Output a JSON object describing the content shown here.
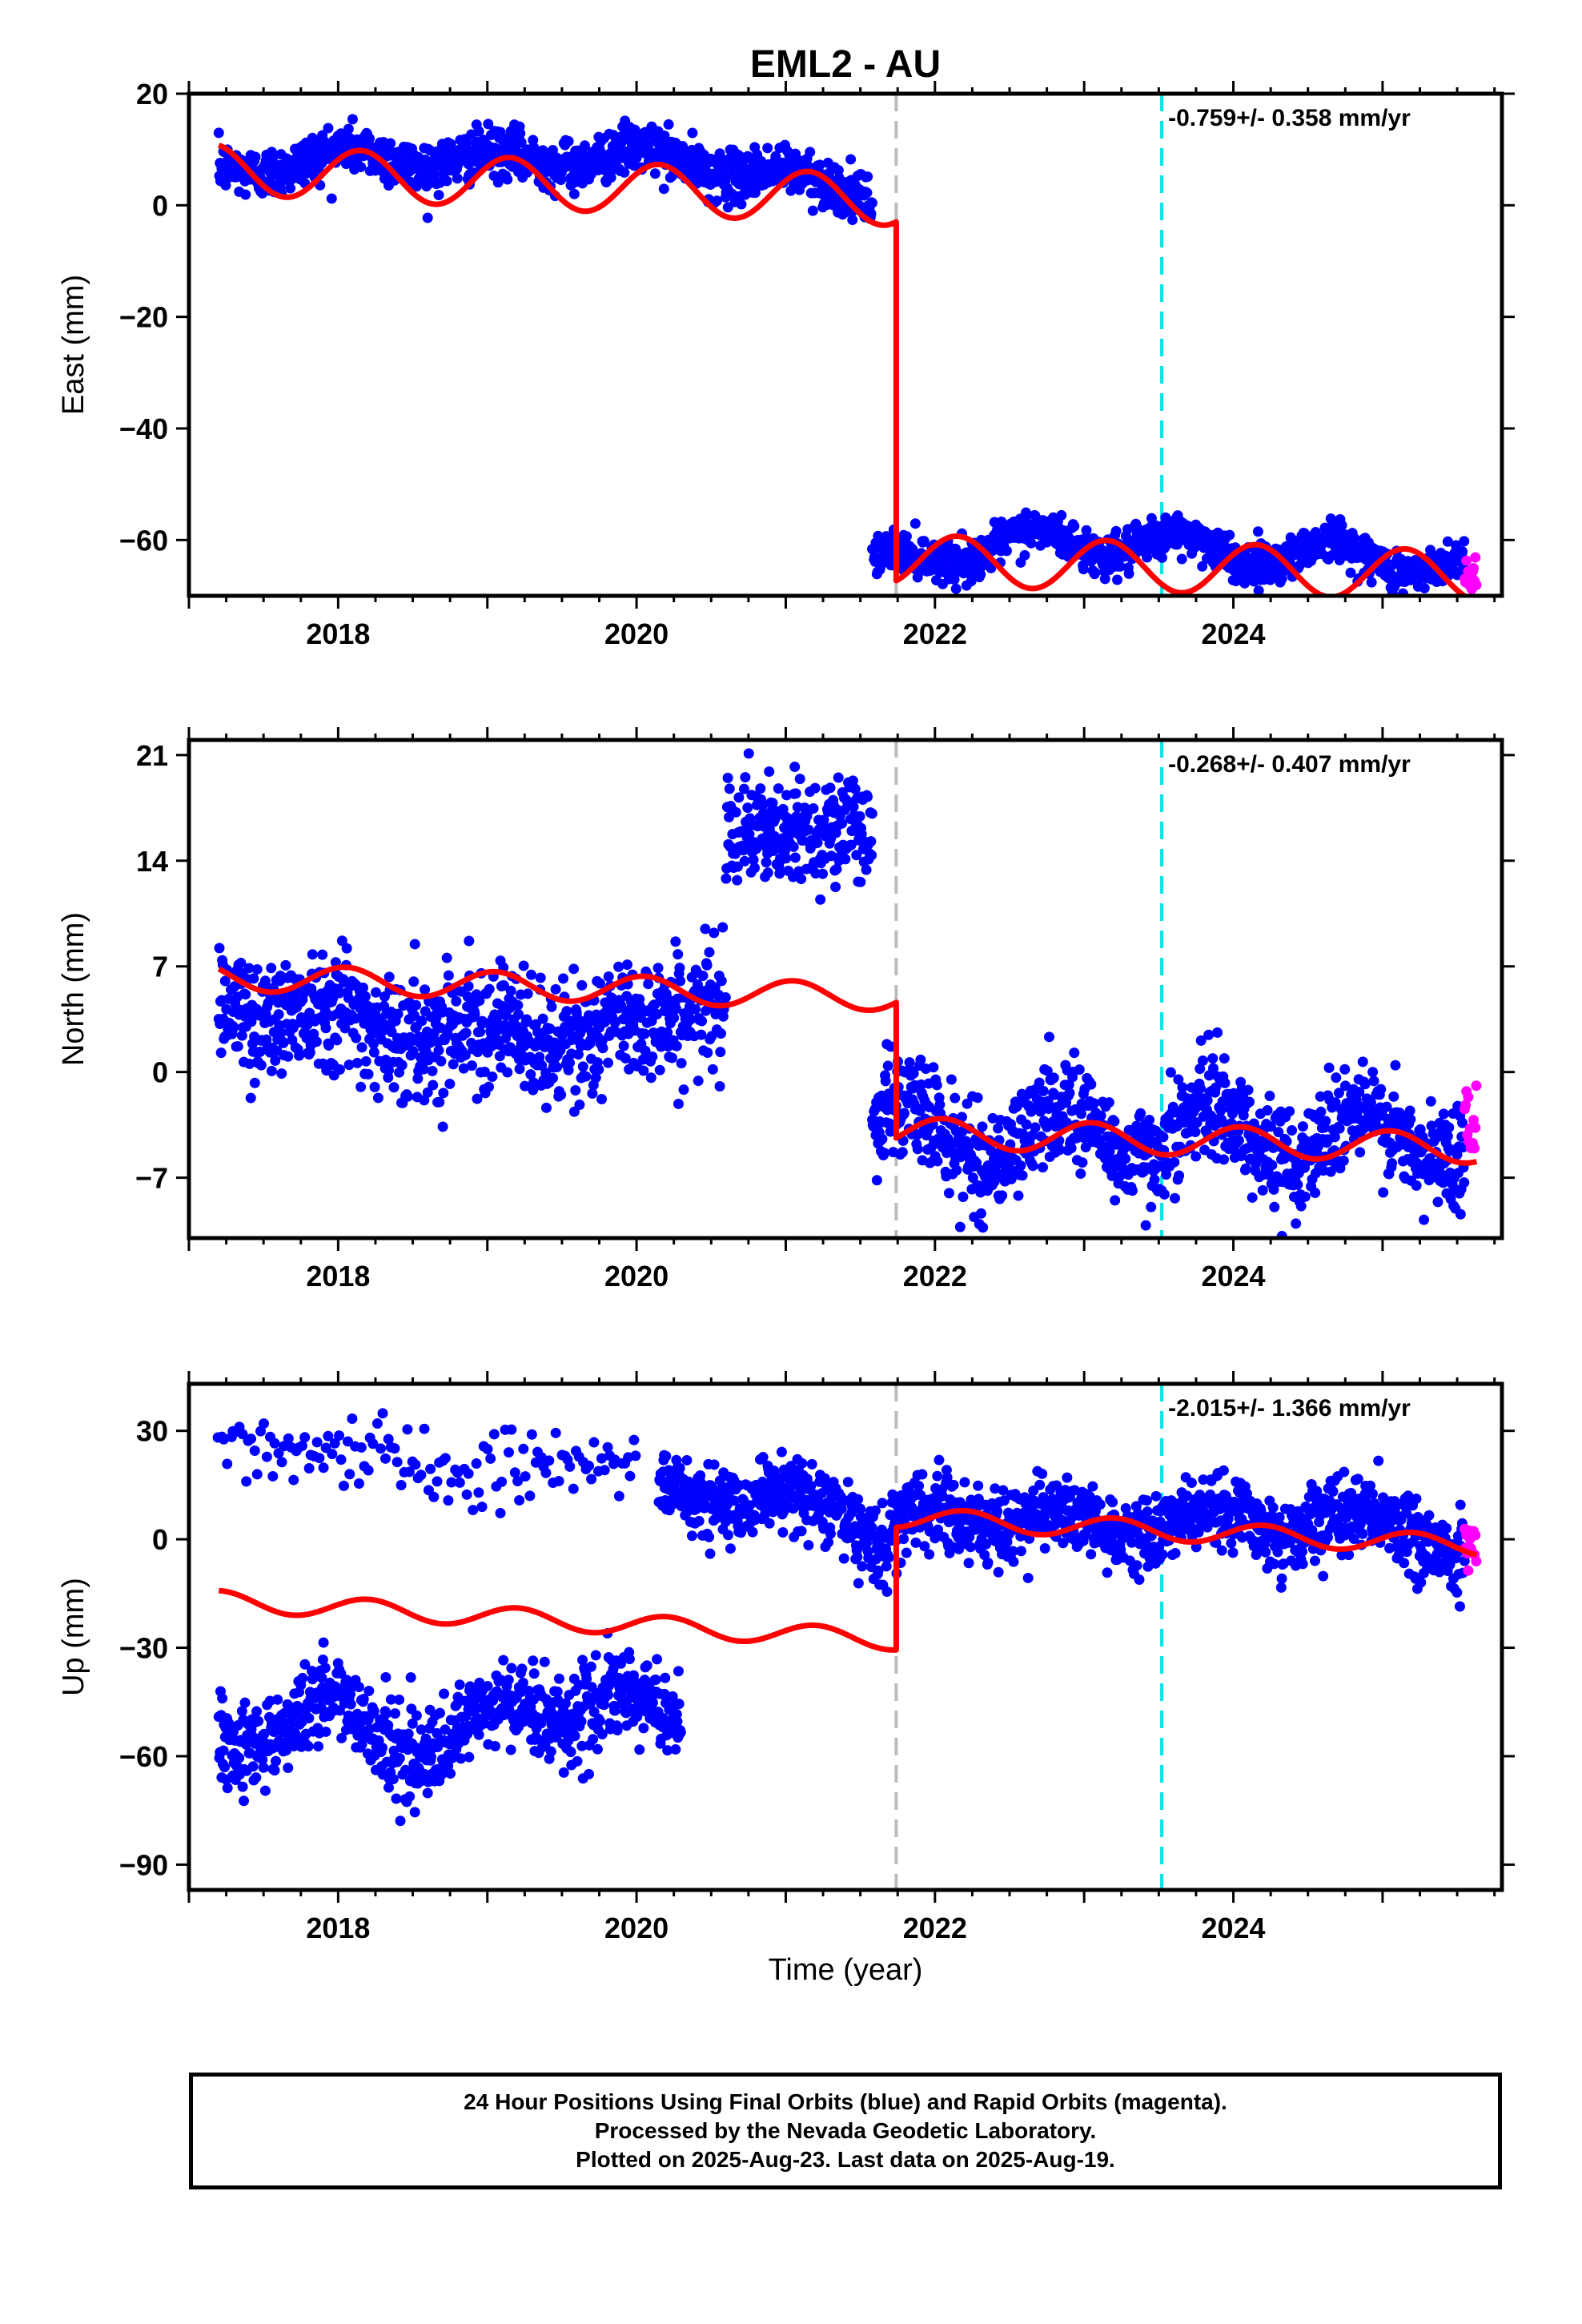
{
  "title": "EML2 - AU",
  "xlabel": "Time (year)",
  "footer": {
    "line1": "24 Hour Positions Using Final Orbits (blue) and Rapid Orbits (magenta).",
    "line2": "Processed by the Nevada Geodetic Laboratory.",
    "line3": "Plotted on 2025-Aug-23. Last data on 2025-Aug-19."
  },
  "colors": {
    "final": "#0000ff",
    "rapid": "#ff00ff",
    "model": "#ff0000",
    "offset_gray": "#bbbbbb",
    "offset_cyan": "#00e5e5"
  },
  "chart_data": [
    {
      "type": "scatter",
      "panel": "East",
      "ylabel": "East (mm)",
      "xlim": [
        2017.0,
        2025.8
      ],
      "ylim": [
        -70,
        20
      ],
      "xticks": [
        2018,
        2020,
        2022,
        2024
      ],
      "yticks": [
        20,
        0,
        -20,
        -40,
        -60
      ],
      "rate_annotation": "-0.759+/- 0.358 mm/yr",
      "offset_lines": [
        {
          "x": 2021.74,
          "color": "gray"
        },
        {
          "x": 2023.52,
          "color": "cyan"
        }
      ],
      "observations": [
        {
          "start": 2017.2,
          "end": 2021.58,
          "anchors": [
            [
              2017.2,
              6
            ],
            [
              2018.0,
              9
            ],
            [
              2019.0,
              8
            ],
            [
              2020.0,
              9
            ],
            [
              2021.0,
              5
            ],
            [
              2021.58,
              2
            ]
          ],
          "noise": 2.2,
          "annual": 1.5,
          "phase": 0.2
        },
        {
          "start": 2021.58,
          "end": 2025.55,
          "anchors": [
            [
              2021.58,
              -65
            ],
            [
              2022.0,
              -62
            ],
            [
              2023.0,
              -60
            ],
            [
              2024.0,
              -62
            ],
            [
              2025.0,
              -63
            ],
            [
              2025.55,
              -65
            ]
          ],
          "noise": 1.8,
          "annual": 2.5,
          "phase": 0.6
        }
      ],
      "rapid": {
        "start": 2025.55,
        "end": 2025.63,
        "center": -66,
        "spread": 3
      },
      "model": {
        "pieces": [
          {
            "start": 2017.2,
            "end": 2021.74,
            "y0": 6.5,
            "slope": -1.25,
            "amp": 4.5,
            "phase": 0.1
          },
          {
            "start": 2021.74,
            "end": 2025.63,
            "y0": -63.5,
            "slope": -0.76,
            "amp": 4.5,
            "phase": 0.1
          }
        ]
      }
    },
    {
      "type": "scatter",
      "panel": "North",
      "ylabel": "North (mm)",
      "xlim": [
        2017.0,
        2025.8
      ],
      "ylim": [
        -11,
        22
      ],
      "xticks": [
        2018,
        2020,
        2022,
        2024
      ],
      "yticks": [
        21,
        14,
        7,
        0,
        -7
      ],
      "rate_annotation": "-0.268+/- 0.407 mm/yr",
      "offset_lines": [
        {
          "x": 2021.74,
          "color": "gray"
        },
        {
          "x": 2023.52,
          "color": "cyan"
        }
      ],
      "observations": [
        {
          "start": 2017.2,
          "end": 2020.6,
          "anchors": [
            [
              2017.2,
              5
            ],
            [
              2018.0,
              3.5
            ],
            [
              2019.0,
              2.5
            ],
            [
              2020.0,
              2.5
            ],
            [
              2020.6,
              6
            ]
          ],
          "noise": 2.0,
          "annual": 1.0,
          "phase": 0.3
        },
        {
          "start": 2020.6,
          "end": 2021.58,
          "anchors": [
            [
              2020.6,
              17
            ],
            [
              2021.0,
              15.5
            ],
            [
              2021.58,
              16
            ]
          ],
          "noise": 1.8,
          "annual": 0.5,
          "phase": 0.0
        },
        {
          "start": 2021.58,
          "end": 2025.55,
          "anchors": [
            [
              2021.58,
              -3
            ],
            [
              2022.0,
              -4.5
            ],
            [
              2023.0,
              -4
            ],
            [
              2024.0,
              -4
            ],
            [
              2025.0,
              -4.5
            ],
            [
              2025.55,
              -4
            ]
          ],
          "noise": 1.7,
          "annual": 1.8,
          "phase": 0.4
        }
      ],
      "rapid": {
        "start": 2025.55,
        "end": 2025.63,
        "center": -3,
        "spread": 2.5
      },
      "model": {
        "pieces": [
          {
            "start": 2017.2,
            "end": 2021.74,
            "y0": 6.3,
            "slope": -0.3,
            "amp": 0.9,
            "phase": 0.2
          },
          {
            "start": 2021.74,
            "end": 2025.63,
            "y0": -4.0,
            "slope": -0.27,
            "amp": 1.0,
            "phase": 0.2
          }
        ]
      }
    },
    {
      "type": "scatter",
      "panel": "Up",
      "ylabel": "Up (mm)",
      "xlim": [
        2017.0,
        2025.8
      ],
      "ylim": [
        -97,
        43
      ],
      "xticks": [
        2018,
        2020,
        2022,
        2024
      ],
      "yticks": [
        30,
        0,
        -30,
        -60,
        -90
      ],
      "rate_annotation": "-2.015+/- 1.366 mm/yr",
      "offset_lines": [
        {
          "x": 2021.74,
          "color": "gray"
        },
        {
          "x": 2023.52,
          "color": "cyan"
        }
      ],
      "observations": [
        {
          "start": 2017.2,
          "end": 2020.3,
          "anchors": [
            [
              2017.2,
              -55
            ],
            [
              2018.0,
              -47
            ],
            [
              2018.7,
              -60
            ],
            [
              2019.2,
              -45
            ],
            [
              2020.3,
              -48
            ]
          ],
          "noise": 6,
          "annual": 4,
          "phase": 0.3
        },
        {
          "start": 2017.2,
          "end": 2020.0,
          "anchors": [
            [
              2017.2,
              25
            ],
            [
              2018.0,
              25
            ],
            [
              2019.0,
              18
            ],
            [
              2020.0,
              22
            ]
          ],
          "noise": 5,
          "annual": 2,
          "phase": 0.0,
          "sparse": true
        },
        {
          "start": 2020.15,
          "end": 2021.7,
          "anchors": [
            [
              2020.15,
              12
            ],
            [
              2021.0,
              12
            ],
            [
              2021.7,
              0
            ]
          ],
          "noise": 5,
          "annual": 3,
          "phase": 0.1
        },
        {
          "start": 2021.7,
          "end": 2025.55,
          "anchors": [
            [
              2021.7,
              3
            ],
            [
              2022.2,
              8
            ],
            [
              2023.0,
              3
            ],
            [
              2024.0,
              5
            ],
            [
              2025.0,
              5
            ],
            [
              2025.55,
              -1
            ]
          ],
          "noise": 5,
          "annual": 3,
          "phase": 0.4
        }
      ],
      "rapid": {
        "start": 2025.55,
        "end": 2025.63,
        "center": -3,
        "spread": 6
      },
      "model": {
        "pieces": [
          {
            "start": 2017.2,
            "end": 2021.74,
            "y0": -17,
            "slope": -2.4,
            "amp": 2.8,
            "phase": 0.05
          },
          {
            "start": 2021.74,
            "end": 2025.63,
            "y0": 6,
            "slope": -2.0,
            "amp": 2.8,
            "phase": 0.05
          }
        ]
      }
    }
  ]
}
